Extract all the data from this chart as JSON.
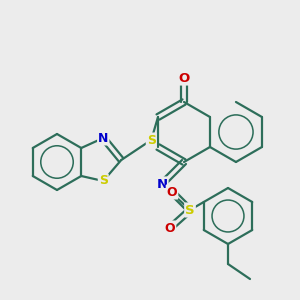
{
  "bg_color": "#ececec",
  "bond_color": "#2d6e5a",
  "atom_colors": {
    "S": "#cccc00",
    "N": "#0000cc",
    "O": "#cc0000",
    "C": "#2d6e5a"
  },
  "line_width": 1.6,
  "font_size": 9.5
}
